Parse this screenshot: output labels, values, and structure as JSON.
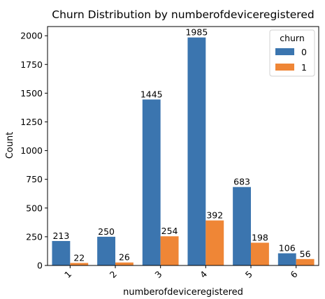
{
  "chart_data": {
    "type": "bar",
    "title": "Churn Distribution by numberofdeviceregistered",
    "xlabel": "numberofdeviceregistered",
    "ylabel": "Count",
    "categories": [
      "1",
      "2",
      "3",
      "4",
      "5",
      "6"
    ],
    "series": [
      {
        "name": "0",
        "values": [
          213,
          250,
          1445,
          1985,
          683,
          106
        ],
        "color": "#3b75af"
      },
      {
        "name": "1",
        "values": [
          22,
          26,
          254,
          392,
          198,
          56
        ],
        "color": "#ef8636"
      }
    ],
    "ylim": [
      0,
      2080
    ],
    "yticks": [
      0,
      250,
      500,
      750,
      1000,
      1250,
      1500,
      1750,
      2000
    ],
    "xtick_rotation": -45,
    "legend": {
      "title": "churn",
      "placement": "top-right"
    },
    "grid": false
  }
}
